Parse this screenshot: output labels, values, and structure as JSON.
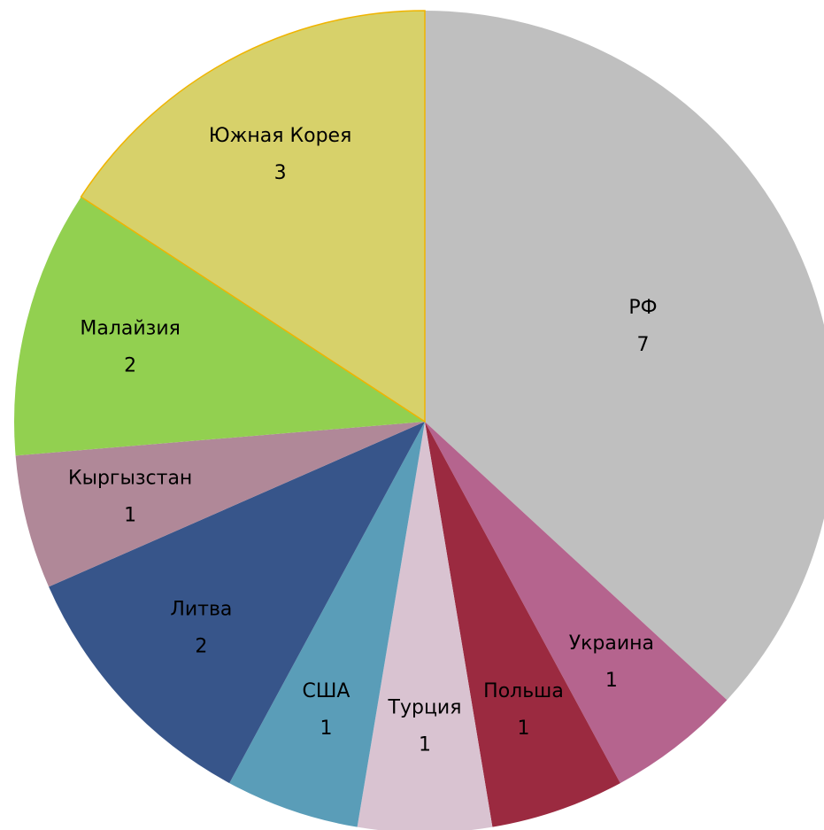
{
  "chart_data": {
    "type": "pie",
    "categories": [
      "РФ",
      "Украина",
      "Польша",
      "Турция",
      "США",
      "Литва",
      "Кыргызстан",
      "Малайзия",
      "Южная Корея"
    ],
    "values": [
      7,
      1,
      1,
      1,
      1,
      2,
      1,
      2,
      3
    ],
    "colors": [
      "#bfbfbf",
      "#b5648e",
      "#9b2a40",
      "#d9c3d1",
      "#5a9db8",
      "#37558a",
      "#b08898",
      "#92d050",
      "#d7d16a"
    ]
  }
}
